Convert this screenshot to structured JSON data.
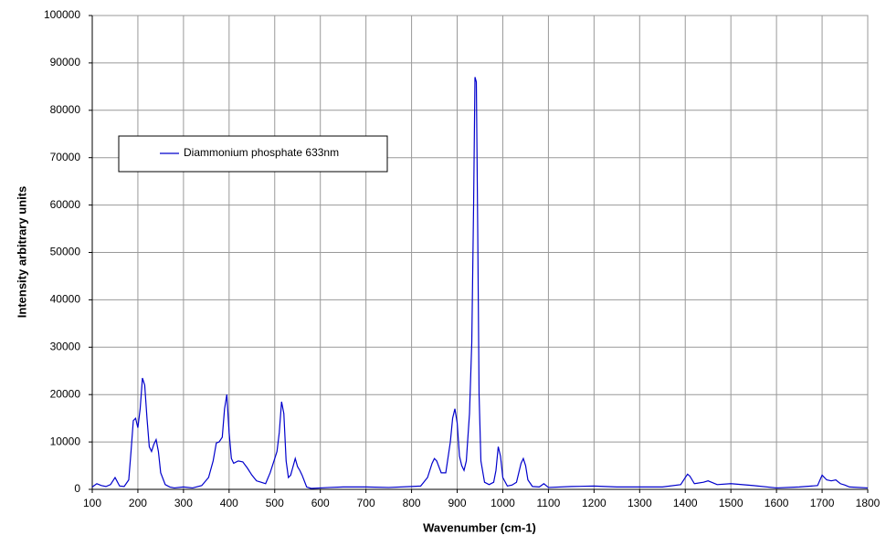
{
  "chart_data": {
    "type": "line",
    "x_label": "Wavenumber (cm-1)",
    "y_label": "Intensity arbitrary units",
    "x": [
      100,
      110,
      120,
      130,
      140,
      150,
      160,
      170,
      180,
      185,
      190,
      195,
      200,
      205,
      210,
      215,
      220,
      225,
      230,
      235,
      240,
      245,
      250,
      260,
      270,
      280,
      300,
      320,
      340,
      355,
      365,
      372,
      378,
      385,
      390,
      395,
      400,
      405,
      410,
      420,
      430,
      440,
      450,
      460,
      470,
      480,
      490,
      500,
      505,
      510,
      515,
      520,
      525,
      530,
      535,
      545,
      550,
      555,
      560,
      570,
      580,
      600,
      620,
      650,
      700,
      750,
      800,
      820,
      835,
      845,
      850,
      855,
      865,
      875,
      885,
      890,
      895,
      900,
      905,
      910,
      915,
      920,
      927,
      932,
      936,
      939,
      942,
      945,
      948,
      952,
      960,
      970,
      980,
      985,
      990,
      995,
      1000,
      1010,
      1020,
      1030,
      1040,
      1045,
      1050,
      1055,
      1065,
      1080,
      1090,
      1100,
      1150,
      1200,
      1250,
      1300,
      1350,
      1390,
      1400,
      1405,
      1410,
      1420,
      1440,
      1450,
      1470,
      1500,
      1550,
      1600,
      1650,
      1690,
      1700,
      1710,
      1720,
      1730,
      1740,
      1750,
      1760,
      1800
    ],
    "series": [
      {
        "name": "Diammonium phosphate 633nm",
        "color": "#0000cc",
        "values": [
          500,
          1200,
          800,
          600,
          1000,
          2500,
          700,
          600,
          2000,
          8000,
          14500,
          15000,
          13000,
          17000,
          23500,
          22000,
          15000,
          9000,
          8000,
          9500,
          10500,
          8000,
          3500,
          1000,
          500,
          300,
          500,
          300,
          800,
          2500,
          6000,
          9800,
          10000,
          11000,
          17000,
          20000,
          12000,
          6500,
          5500,
          6000,
          5800,
          4500,
          3000,
          1800,
          1500,
          1200,
          3500,
          6500,
          8000,
          12000,
          18500,
          16000,
          6000,
          2500,
          3000,
          6500,
          4800,
          4000,
          3000,
          500,
          200,
          300,
          400,
          500,
          500,
          400,
          600,
          700,
          2500,
          5500,
          6500,
          6000,
          3500,
          3500,
          10000,
          15000,
          17000,
          14000,
          7000,
          5000,
          4000,
          6000,
          16000,
          31000,
          60000,
          87000,
          86000,
          55000,
          20000,
          6000,
          1500,
          1000,
          1500,
          4000,
          9000,
          7000,
          2500,
          700,
          900,
          1500,
          5500,
          6500,
          5000,
          2000,
          600,
          500,
          1200,
          400,
          600,
          700,
          500,
          500,
          500,
          1000,
          2500,
          3200,
          2800,
          1200,
          1500,
          1800,
          1000,
          1200,
          800,
          300,
          500,
          800,
          3000,
          2000,
          1800,
          2000,
          1200,
          900,
          500,
          300
        ]
      }
    ],
    "xlim": [
      100,
      1800
    ],
    "xticks": [
      100,
      200,
      300,
      400,
      500,
      600,
      700,
      800,
      900,
      1000,
      1100,
      1200,
      1300,
      1400,
      1500,
      1600,
      1700,
      1800
    ],
    "ylim": [
      0,
      100000
    ],
    "yticks": [
      0,
      10000,
      20000,
      30000,
      40000,
      50000,
      60000,
      70000,
      80000,
      90000,
      100000
    ],
    "grid": true,
    "legend": "upper-left"
  }
}
